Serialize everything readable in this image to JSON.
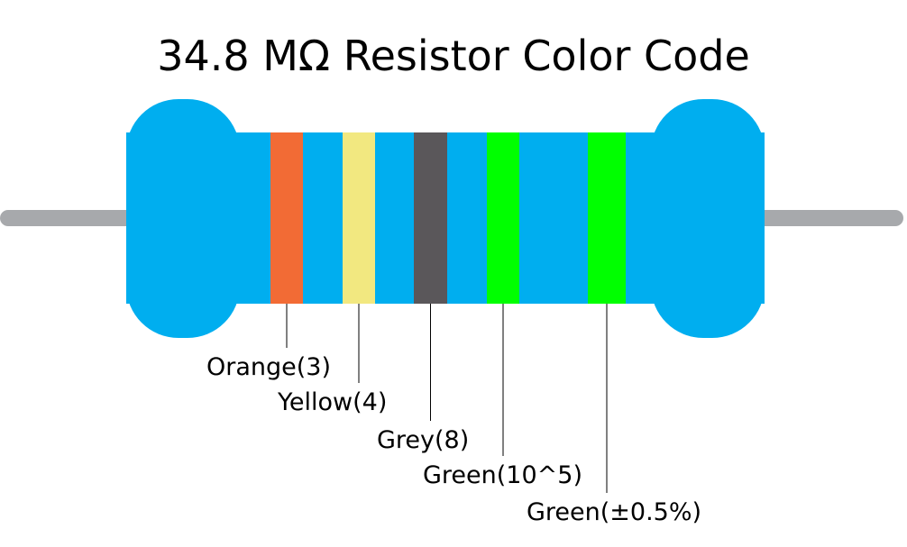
{
  "title": "34.8 MΩ Resistor Color Code",
  "bands": [
    {
      "label": "Orange(3)",
      "color": "#f26b35"
    },
    {
      "label": "Yellow(4)",
      "color": "#f2e880"
    },
    {
      "label": "Grey(8)",
      "color": "#5a575a"
    },
    {
      "label": "Green(10^5)",
      "color": "#00ff00"
    },
    {
      "label": "Green(±0.5%)",
      "color": "#00ff00"
    }
  ]
}
